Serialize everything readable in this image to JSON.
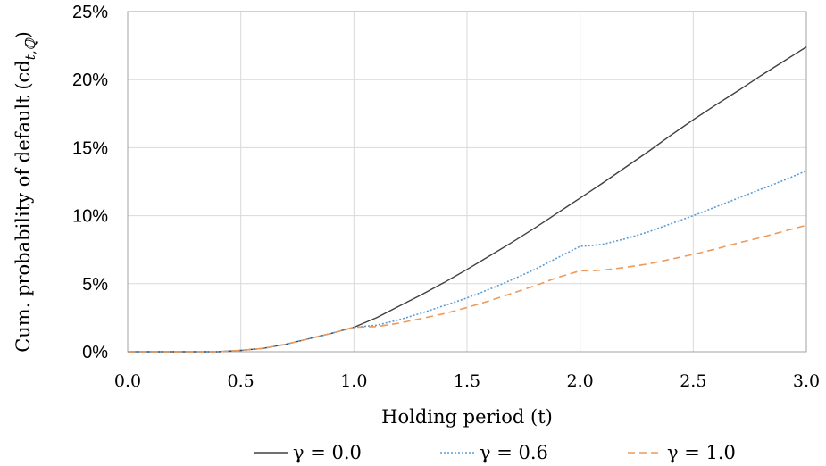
{
  "chart_data": {
    "type": "line",
    "title": "",
    "xlabel": "Holding period (t)",
    "ylabel": "Cum. probability of default (cd",
    "ylabel_sub": "t,ℚ",
    "ylabel_close": ")",
    "xlim": [
      0,
      3
    ],
    "ylim": [
      0,
      25
    ],
    "grid": true,
    "legend_position": "bottom",
    "x_ticks": [
      "0.0",
      "0.5",
      "1.0",
      "1.5",
      "2.0",
      "2.5",
      "3.0"
    ],
    "y_ticks": [
      "0%",
      "5%",
      "10%",
      "15%",
      "20%",
      "25%"
    ],
    "x": [
      0,
      0.4,
      0.5,
      0.6,
      0.7,
      0.8,
      0.9,
      1.0,
      1.1,
      1.2,
      1.3,
      1.4,
      1.5,
      1.6,
      1.7,
      1.8,
      1.9,
      2.0,
      2.05,
      2.1,
      2.2,
      2.3,
      2.4,
      2.5,
      2.6,
      2.7,
      2.8,
      2.9,
      3.0
    ],
    "series": [
      {
        "name": "γ = 0.0",
        "color": "#404040",
        "dash": "solid",
        "values": [
          0,
          0.0,
          0.1,
          0.25,
          0.55,
          0.95,
          1.35,
          1.8,
          2.5,
          3.35,
          4.2,
          5.1,
          6.05,
          7.05,
          8.05,
          9.1,
          10.2,
          11.3,
          11.85,
          12.4,
          13.55,
          14.7,
          15.9,
          17.05,
          18.15,
          19.2,
          20.3,
          21.35,
          22.4
        ]
      },
      {
        "name": "γ = 0.6",
        "color": "#5b9bd5",
        "dash": "dotted",
        "values": [
          0,
          0.0,
          0.1,
          0.25,
          0.55,
          0.95,
          1.35,
          1.8,
          1.95,
          2.35,
          2.85,
          3.4,
          3.95,
          4.6,
          5.3,
          6.05,
          6.9,
          7.75,
          7.8,
          7.9,
          8.3,
          8.8,
          9.4,
          10.0,
          10.65,
          11.3,
          11.95,
          12.6,
          13.3
        ]
      },
      {
        "name": "γ = 1.0",
        "color": "#ed9a5c",
        "dash": "dashed",
        "values": [
          0,
          0.0,
          0.1,
          0.25,
          0.55,
          0.95,
          1.35,
          1.8,
          1.85,
          2.1,
          2.45,
          2.8,
          3.25,
          3.75,
          4.3,
          4.85,
          5.45,
          5.95,
          5.95,
          6.0,
          6.2,
          6.45,
          6.8,
          7.15,
          7.55,
          8.0,
          8.4,
          8.85,
          9.3
        ]
      }
    ]
  }
}
